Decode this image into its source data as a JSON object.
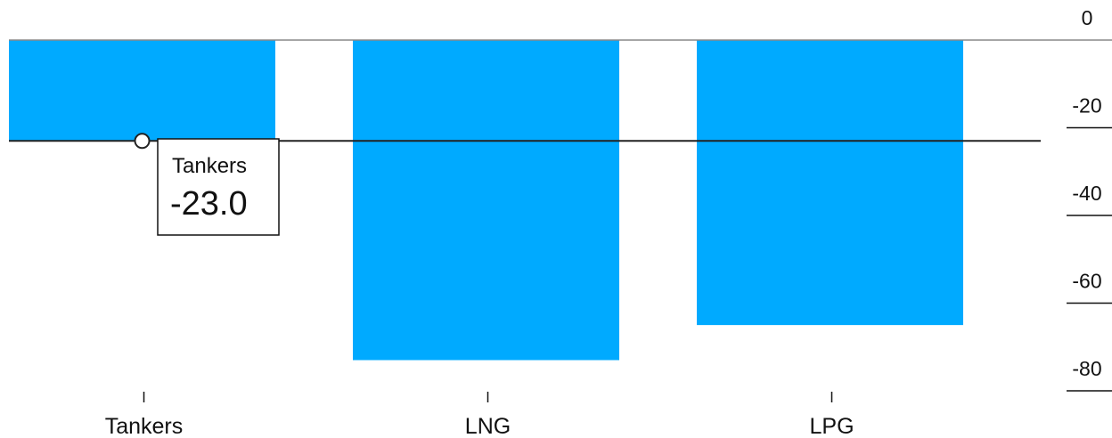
{
  "chart_data": {
    "type": "bar",
    "title": "",
    "xlabel": "",
    "ylabel": "",
    "categories": [
      "Tankers",
      "LNG",
      "LPG"
    ],
    "values": [
      -23.0,
      -73.0,
      -65.0
    ],
    "ylim": [
      -80,
      0
    ],
    "yticks": [
      0,
      -20,
      -40,
      -60,
      -80
    ],
    "grid": false,
    "legend": "none",
    "bar_color": "#00aaff",
    "tooltip": {
      "category": "Tankers",
      "value_text": "-23.0",
      "value": -23.0
    }
  }
}
